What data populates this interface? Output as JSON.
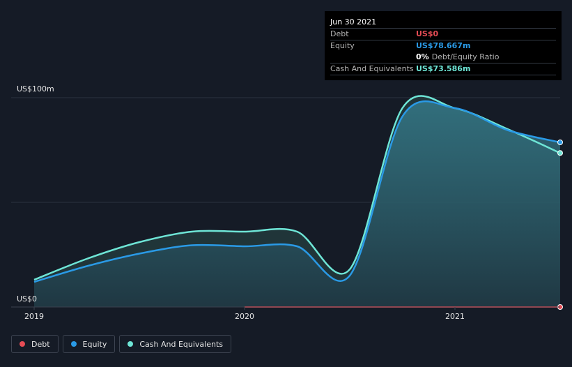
{
  "tooltip": {
    "date": "Jun 30 2021",
    "rows": [
      {
        "label": "Debt",
        "value": "US$0",
        "color": "#e64c55"
      },
      {
        "label": "Equity",
        "value": "US$78.667m",
        "color": "#2a9ae6"
      },
      {
        "ratio_pct": "0%",
        "ratio_label": "Debt/Equity Ratio"
      },
      {
        "label": "Cash And Equivalents",
        "value": "US$73.586m",
        "color": "#6ee5d6"
      }
    ]
  },
  "legend": [
    {
      "label": "Debt",
      "color": "#e64c55"
    },
    {
      "label": "Equity",
      "color": "#2a9ae6"
    },
    {
      "label": "Cash And Equivalents",
      "color": "#6ee5d6"
    }
  ],
  "chart_data": {
    "type": "area",
    "y_axis_labels": [
      "US$100m",
      "US$0"
    ],
    "x_ticks": [
      2019,
      2020,
      2021
    ],
    "x_tick_labels": [
      "2019",
      "2020",
      "2021"
    ],
    "ylim": [
      0,
      100
    ],
    "xlim": [
      2019.0,
      2021.5
    ],
    "grid": true,
    "legend_position": "bottom-left",
    "series": [
      {
        "name": "Debt",
        "color": "#e64c55",
        "x": [
          2020.0,
          2020.25,
          2020.5,
          2020.75,
          2021.0,
          2021.25,
          2021.5
        ],
        "y": [
          0,
          0,
          0,
          0,
          0,
          0,
          0
        ]
      },
      {
        "name": "Equity",
        "color": "#2a9ae6",
        "x": [
          2019.0,
          2019.25,
          2019.5,
          2019.75,
          2020.0,
          2020.25,
          2020.5,
          2020.75,
          2021.0,
          2021.25,
          2021.5
        ],
        "y": [
          12,
          19.5,
          25.5,
          29.5,
          29,
          29,
          15,
          91,
          95,
          84.5,
          78.667
        ]
      },
      {
        "name": "Cash And Equivalents",
        "color": "#6ee5d6",
        "x": [
          2019.0,
          2019.25,
          2019.5,
          2019.75,
          2020.0,
          2020.25,
          2020.5,
          2020.75,
          2021.0,
          2021.25,
          2021.5
        ],
        "y": [
          13,
          23,
          31,
          36,
          36,
          36,
          18,
          95,
          95,
          85,
          73.586
        ]
      }
    ]
  }
}
